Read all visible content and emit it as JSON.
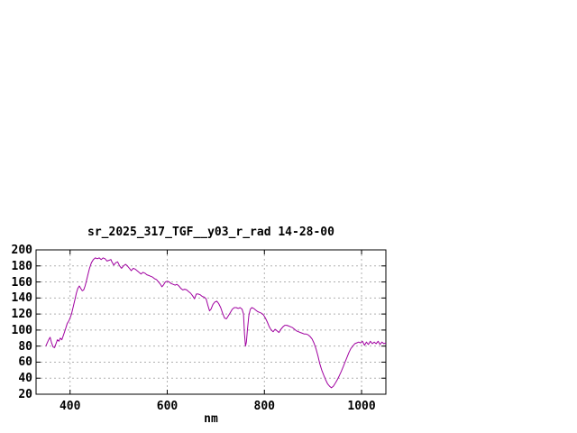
{
  "window": {
    "background": "#ffffff",
    "text_color": "#000000",
    "grid_color": "#b0b0b0",
    "border_color": "#000000"
  },
  "chart_data": {
    "type": "line",
    "title": "sr_2025_317_TGF__y03_r_rad 14-28-00",
    "xlabel": "nm",
    "ylabel": "",
    "xlim": [
      330,
      1050
    ],
    "ylim": [
      20,
      200
    ],
    "xticks": [
      400,
      600,
      800,
      1000
    ],
    "yticks": [
      20,
      40,
      60,
      80,
      100,
      120,
      140,
      160,
      180,
      200
    ],
    "grid": true,
    "legend": "none",
    "line_color": "#a000a0",
    "series": [
      {
        "name": "sr_2025_317_TGF__y03_r_rad",
        "points": [
          [
            350,
            80
          ],
          [
            353,
            84
          ],
          [
            356,
            88
          ],
          [
            359,
            91
          ],
          [
            362,
            84
          ],
          [
            365,
            79
          ],
          [
            368,
            78
          ],
          [
            371,
            83
          ],
          [
            374,
            88
          ],
          [
            377,
            86
          ],
          [
            380,
            90
          ],
          [
            383,
            88
          ],
          [
            386,
            93
          ],
          [
            390,
            100
          ],
          [
            394,
            108
          ],
          [
            398,
            112
          ],
          [
            400,
            115
          ],
          [
            403,
            120
          ],
          [
            406,
            128
          ],
          [
            410,
            138
          ],
          [
            413,
            146
          ],
          [
            416,
            152
          ],
          [
            419,
            155
          ],
          [
            422,
            152
          ],
          [
            425,
            149
          ],
          [
            428,
            150
          ],
          [
            431,
            155
          ],
          [
            434,
            162
          ],
          [
            437,
            170
          ],
          [
            440,
            177
          ],
          [
            444,
            184
          ],
          [
            448,
            188
          ],
          [
            452,
            190
          ],
          [
            456,
            189
          ],
          [
            460,
            190
          ],
          [
            464,
            188
          ],
          [
            468,
            190
          ],
          [
            472,
            189
          ],
          [
            476,
            186
          ],
          [
            480,
            187
          ],
          [
            484,
            188
          ],
          [
            486,
            185
          ],
          [
            490,
            181
          ],
          [
            494,
            184
          ],
          [
            498,
            185
          ],
          [
            502,
            180
          ],
          [
            506,
            177
          ],
          [
            510,
            180
          ],
          [
            514,
            182
          ],
          [
            518,
            180
          ],
          [
            522,
            177
          ],
          [
            526,
            174
          ],
          [
            530,
            177
          ],
          [
            534,
            176
          ],
          [
            538,
            174
          ],
          [
            542,
            172
          ],
          [
            546,
            170
          ],
          [
            550,
            172
          ],
          [
            554,
            171
          ],
          [
            558,
            169
          ],
          [
            562,
            168
          ],
          [
            566,
            167
          ],
          [
            570,
            166
          ],
          [
            574,
            164
          ],
          [
            578,
            163
          ],
          [
            582,
            160
          ],
          [
            586,
            157
          ],
          [
            589,
            154
          ],
          [
            592,
            156
          ],
          [
            596,
            160
          ],
          [
            600,
            161
          ],
          [
            604,
            160
          ],
          [
            608,
            158
          ],
          [
            612,
            157
          ],
          [
            616,
            156
          ],
          [
            620,
            157
          ],
          [
            624,
            155
          ],
          [
            628,
            152
          ],
          [
            632,
            150
          ],
          [
            636,
            151
          ],
          [
            640,
            150
          ],
          [
            644,
            148
          ],
          [
            648,
            146
          ],
          [
            652,
            143
          ],
          [
            656,
            139
          ],
          [
            660,
            145
          ],
          [
            664,
            145
          ],
          [
            668,
            144
          ],
          [
            672,
            142
          ],
          [
            676,
            141
          ],
          [
            680,
            139
          ],
          [
            684,
            130
          ],
          [
            687,
            124
          ],
          [
            690,
            126
          ],
          [
            694,
            132
          ],
          [
            698,
            135
          ],
          [
            702,
            136
          ],
          [
            706,
            133
          ],
          [
            710,
            128
          ],
          [
            714,
            121
          ],
          [
            718,
            115
          ],
          [
            722,
            114
          ],
          [
            726,
            118
          ],
          [
            730,
            122
          ],
          [
            734,
            126
          ],
          [
            738,
            128
          ],
          [
            742,
            128
          ],
          [
            746,
            127
          ],
          [
            750,
            128
          ],
          [
            754,
            126
          ],
          [
            757,
            120
          ],
          [
            759,
            95
          ],
          [
            761,
            80
          ],
          [
            763,
            85
          ],
          [
            765,
            100
          ],
          [
            768,
            118
          ],
          [
            771,
            126
          ],
          [
            774,
            128
          ],
          [
            778,
            127
          ],
          [
            782,
            125
          ],
          [
            786,
            123
          ],
          [
            790,
            122
          ],
          [
            794,
            121
          ],
          [
            798,
            119
          ],
          [
            802,
            115
          ],
          [
            806,
            110
          ],
          [
            810,
            104
          ],
          [
            814,
            100
          ],
          [
            818,
            98
          ],
          [
            822,
            101
          ],
          [
            826,
            99
          ],
          [
            830,
            97
          ],
          [
            834,
            101
          ],
          [
            838,
            104
          ],
          [
            842,
            106
          ],
          [
            846,
            106
          ],
          [
            850,
            105
          ],
          [
            854,
            104
          ],
          [
            858,
            103
          ],
          [
            862,
            101
          ],
          [
            866,
            99
          ],
          [
            870,
            98
          ],
          [
            874,
            97
          ],
          [
            878,
            96
          ],
          [
            882,
            95
          ],
          [
            886,
            95
          ],
          [
            890,
            94
          ],
          [
            894,
            92
          ],
          [
            898,
            89
          ],
          [
            902,
            84
          ],
          [
            906,
            77
          ],
          [
            910,
            68
          ],
          [
            914,
            58
          ],
          [
            918,
            50
          ],
          [
            922,
            44
          ],
          [
            926,
            38
          ],
          [
            930,
            33
          ],
          [
            934,
            30
          ],
          [
            938,
            28
          ],
          [
            942,
            30
          ],
          [
            946,
            34
          ],
          [
            950,
            38
          ],
          [
            954,
            43
          ],
          [
            958,
            48
          ],
          [
            962,
            54
          ],
          [
            966,
            60
          ],
          [
            970,
            66
          ],
          [
            974,
            72
          ],
          [
            978,
            77
          ],
          [
            982,
            80
          ],
          [
            986,
            83
          ],
          [
            990,
            84
          ],
          [
            994,
            85
          ],
          [
            998,
            84
          ],
          [
            1002,
            86
          ],
          [
            1006,
            81
          ],
          [
            1010,
            85
          ],
          [
            1014,
            82
          ],
          [
            1018,
            86
          ],
          [
            1022,
            83
          ],
          [
            1026,
            85
          ],
          [
            1030,
            83
          ],
          [
            1034,
            86
          ],
          [
            1038,
            82
          ],
          [
            1042,
            85
          ],
          [
            1046,
            83
          ],
          [
            1050,
            84
          ]
        ]
      }
    ]
  }
}
